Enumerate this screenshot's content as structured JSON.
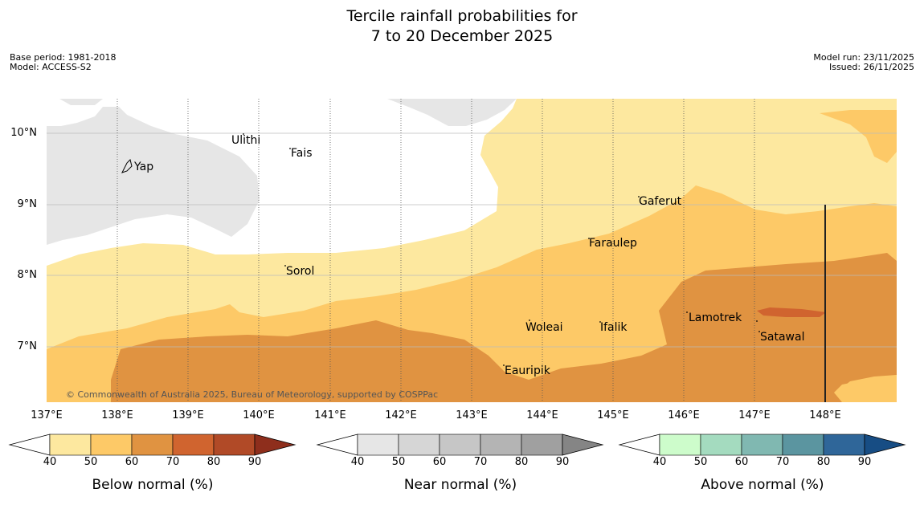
{
  "title": {
    "line1": "Tercile rainfall probabilities for",
    "line2": "7 to 20 December 2025"
  },
  "meta": {
    "base_period": "Base period: 1981-2018",
    "model": "Model: ACCESS-S2",
    "model_run": "Model run: 23/11/2025",
    "issued": "Issued: 26/11/2025"
  },
  "axes": {
    "lat_labels": [
      "10°N",
      "9°N",
      "8°N",
      "7°N"
    ],
    "lon_labels": [
      "137°E",
      "138°E",
      "139°E",
      "140°E",
      "141°E",
      "142°E",
      "143°E",
      "144°E",
      "145°E",
      "146°E",
      "147°E",
      "148°E"
    ]
  },
  "places": [
    {
      "name": "Ulithi"
    },
    {
      "name": "Fais"
    },
    {
      "name": "Yap"
    },
    {
      "name": "Gaferut"
    },
    {
      "name": "Faraulep"
    },
    {
      "name": "Sorol"
    },
    {
      "name": "Lamotrek"
    },
    {
      "name": "Woleai"
    },
    {
      "name": "Ifalik"
    },
    {
      "name": "Satawal"
    },
    {
      "name": "Eauripik"
    }
  ],
  "copyright": "© Commonwealth of Australia 2025, Bureau of Meteorology, supported by COSPPac",
  "colorbars": [
    {
      "title": "Below normal (%)",
      "ticks": [
        "40",
        "50",
        "60",
        "70",
        "80",
        "90"
      ],
      "colors": [
        "#fde89f",
        "#fdc967",
        "#e09341",
        "#d0642f",
        "#b14a27",
        "#8e2e1c"
      ]
    },
    {
      "title": "Near normal (%)",
      "ticks": [
        "40",
        "50",
        "60",
        "70",
        "80",
        "90"
      ],
      "colors": [
        "#e6e6e6",
        "#d6d6d6",
        "#c6c6c6",
        "#b4b4b4",
        "#a0a0a0",
        "#858585"
      ]
    },
    {
      "title": "Above normal (%)",
      "ticks": [
        "40",
        "50",
        "60",
        "70",
        "80",
        "90"
      ],
      "colors": [
        "#cdfccb",
        "#a4dbbf",
        "#80b8b1",
        "#5b95a0",
        "#2f6699",
        "#174d84"
      ]
    }
  ],
  "legend_colors": {
    "below_40_50": "#fde89f",
    "below_50_60": "#fdc967",
    "below_60_70": "#e09341",
    "below_70_80": "#d0642f",
    "near_40_50": "#e6e6e6"
  }
}
